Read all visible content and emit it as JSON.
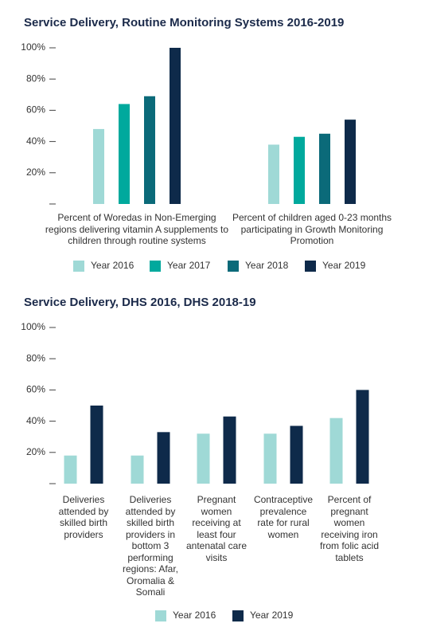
{
  "chart_data": [
    {
      "type": "bar",
      "title": "Service Delivery, Routine Monitoring Systems 2016-2019",
      "categories": [
        "Percent of Woredas in Non-Emerging regions delivering vitamin A supplements to children through routine systems",
        "Percent of children aged 0-23 months participating in Growth Monitoring Promotion"
      ],
      "series": [
        {
          "name": "Year 2016",
          "color": "#9fd9d6",
          "values": [
            48,
            38
          ]
        },
        {
          "name": "Year 2017",
          "color": "#00a99d",
          "values": [
            64,
            43
          ]
        },
        {
          "name": "Year 2018",
          "color": "#0b6a79",
          "values": [
            69,
            45
          ]
        },
        {
          "name": "Year 2019",
          "color": "#0e2a4a",
          "values": [
            100,
            54
          ]
        }
      ],
      "ylim": [
        0,
        100
      ],
      "yticks": [
        {
          "value": 20,
          "label": "20%"
        },
        {
          "value": 40,
          "label": "40%"
        },
        {
          "value": 60,
          "label": "60%"
        },
        {
          "value": 80,
          "label": "80%"
        },
        {
          "value": 100,
          "label": "100%"
        }
      ]
    },
    {
      "type": "bar",
      "title": "Service Delivery, DHS 2016, DHS 2018-19",
      "categories": [
        "Deliveries attended by skilled birth providers",
        "Deliveries attended by skilled birth providers in bottom 3 performing regions: Afar, Oromalia & Somali",
        "Pregnant women receiving at least four antenatal care visits",
        "Contraceptive prevalence rate for rural women",
        "Percent of pregnant women receiving iron from folic acid tablets"
      ],
      "series": [
        {
          "name": "Year 2016",
          "color": "#9fd9d6",
          "values": [
            18,
            18,
            32,
            32,
            42
          ]
        },
        {
          "name": "Year 2019",
          "color": "#0e2a4a",
          "values": [
            50,
            33,
            43,
            37,
            60
          ]
        }
      ],
      "ylim": [
        0,
        100
      ],
      "yticks": [
        {
          "value": 20,
          "label": "20%"
        },
        {
          "value": 40,
          "label": "40%"
        },
        {
          "value": 60,
          "label": "60%"
        },
        {
          "value": 80,
          "label": "80%"
        },
        {
          "value": 100,
          "label": "100%"
        }
      ]
    }
  ]
}
